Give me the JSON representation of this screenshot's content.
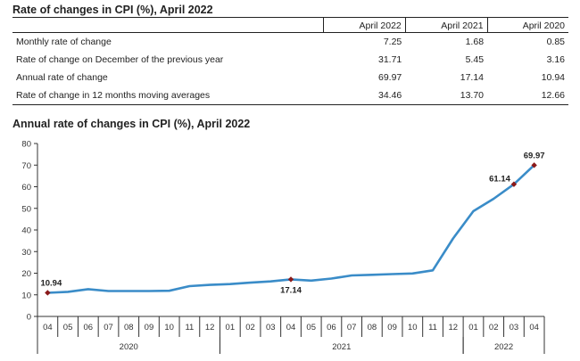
{
  "table": {
    "title": "Rate of changes in CPI (%), April 2022",
    "columns": [
      "April 2022",
      "April 2021",
      "April 2020"
    ],
    "rows": [
      {
        "label": "Monthly rate of change",
        "values": [
          "7.25",
          "1.68",
          "0.85"
        ]
      },
      {
        "label": "Rate of change on December of the previous year",
        "values": [
          "31.71",
          "5.45",
          "3.16"
        ]
      },
      {
        "label": "Annual rate of change",
        "values": [
          "69.97",
          "17.14",
          "10.94"
        ]
      },
      {
        "label": "Rate of change in 12 months moving averages",
        "values": [
          "34.46",
          "13.70",
          "12.66"
        ]
      }
    ]
  },
  "chart_data": {
    "type": "line",
    "title": "Annual rate of changes in CPI (%), April 2022",
    "ylim": [
      0,
      80
    ],
    "yticks": [
      0,
      10,
      20,
      30,
      40,
      50,
      60,
      70,
      80
    ],
    "x_months": [
      "04",
      "05",
      "06",
      "07",
      "08",
      "09",
      "10",
      "11",
      "12",
      "01",
      "02",
      "03",
      "04",
      "05",
      "06",
      "07",
      "08",
      "09",
      "10",
      "11",
      "12",
      "01",
      "02",
      "03",
      "04"
    ],
    "year_groups": [
      {
        "label": "2020",
        "start": 0,
        "end": 8
      },
      {
        "label": "2021",
        "start": 9,
        "end": 20
      },
      {
        "label": "2022",
        "start": 21,
        "end": 24
      }
    ],
    "series": [
      {
        "values": [
          10.94,
          11.39,
          12.62,
          11.76,
          11.77,
          11.75,
          11.89,
          14.03,
          14.6,
          14.97,
          15.61,
          16.19,
          17.14,
          16.59,
          17.53,
          18.95,
          19.25,
          19.58,
          19.89,
          21.31,
          36.08,
          48.69,
          54.44,
          61.14,
          69.97
        ],
        "color": "#3a8cc8"
      }
    ],
    "markers": [
      {
        "index": 0,
        "label": "10.94",
        "label_pos": "above"
      },
      {
        "index": 12,
        "label": "17.14",
        "label_pos": "below"
      },
      {
        "index": 23,
        "label": "61.14",
        "label_pos": "left"
      },
      {
        "index": 24,
        "label": "69.97",
        "label_pos": "above"
      }
    ],
    "marker_color": "#8b1a1a",
    "grid": false
  }
}
